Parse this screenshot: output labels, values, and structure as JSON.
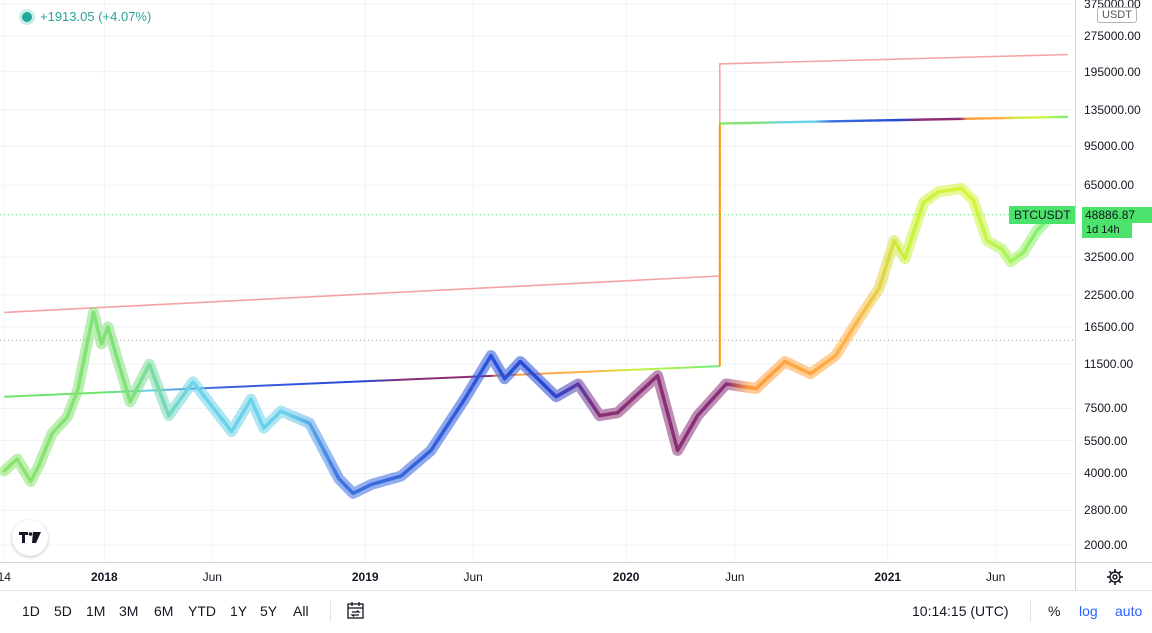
{
  "header": {
    "change_text": "+1913.05 (+4.07%)"
  },
  "price_axis": {
    "currency": "USDT",
    "symbol": "BTCUSDT",
    "last_price": "48886.87",
    "countdown": "1d 14h"
  },
  "toolbar": {
    "ranges": [
      "1D",
      "5D",
      "1M",
      "3M",
      "6M",
      "YTD",
      "1Y",
      "5Y",
      "All"
    ],
    "time": "10:14:15 (UTC)",
    "percent_label": "%",
    "log_label": "log",
    "auto_label": "auto"
  },
  "icons": {
    "logo": "tradingview-logo",
    "compare": "compare-calendar-icon",
    "settings": "gear-icon"
  },
  "colors": {
    "accent": "#2962ff",
    "positive": "#26a69a",
    "last_price_bg": "#4be36b",
    "resistance_line": "#f5a3a3",
    "top_projection": "#ff9800"
  },
  "chart_data": {
    "type": "line",
    "scale": "log",
    "ylim": [
      1800,
      375000
    ],
    "y_ticks": [
      "375000.00",
      "275000.00",
      "195000.00",
      "135000.00",
      "95000.00",
      "65000.00",
      "32500.00",
      "22500.00",
      "16500.00",
      "11500.00",
      "7500.00",
      "5500.00",
      "4000.00",
      "2800.00",
      "2000.00"
    ],
    "xlim": [
      "2017-08-08",
      "2021-09-20"
    ],
    "x_ticks": [
      {
        "label": "14",
        "date": "2017-08-14"
      },
      {
        "label": "2018",
        "date": "2018-01-01"
      },
      {
        "label": "Jun",
        "date": "2018-06-01"
      },
      {
        "label": "2019",
        "date": "2019-01-01"
      },
      {
        "label": "Jun",
        "date": "2019-06-01"
      },
      {
        "label": "2020",
        "date": "2020-01-01"
      },
      {
        "label": "Jun",
        "date": "2020-06-01"
      },
      {
        "label": "2021",
        "date": "2021-01-01"
      },
      {
        "label": "Jun",
        "date": "2021-06-01"
      }
    ],
    "last_price": 48886.87,
    "horizontal_dotted_level": 14500,
    "series": [
      {
        "name": "BTCUSDT",
        "points": [
          [
            "2017-08-14",
            4100
          ],
          [
            "2017-09-01",
            4600
          ],
          [
            "2017-09-20",
            3700
          ],
          [
            "2017-10-01",
            4300
          ],
          [
            "2017-10-20",
            5900
          ],
          [
            "2017-11-10",
            6900
          ],
          [
            "2017-11-25",
            9000
          ],
          [
            "2017-12-17",
            19000
          ],
          [
            "2017-12-28",
            14000
          ],
          [
            "2018-01-06",
            16500
          ],
          [
            "2018-02-06",
            8000
          ],
          [
            "2018-03-05",
            11500
          ],
          [
            "2018-04-01",
            7000
          ],
          [
            "2018-05-05",
            9700
          ],
          [
            "2018-06-28",
            6000
          ],
          [
            "2018-07-25",
            8200
          ],
          [
            "2018-08-12",
            6200
          ],
          [
            "2018-09-05",
            7300
          ],
          [
            "2018-10-15",
            6500
          ],
          [
            "2018-11-25",
            3800
          ],
          [
            "2018-12-15",
            3300
          ],
          [
            "2019-01-10",
            3600
          ],
          [
            "2019-02-20",
            3900
          ],
          [
            "2019-04-03",
            5000
          ],
          [
            "2019-05-20",
            8200
          ],
          [
            "2019-06-26",
            12500
          ],
          [
            "2019-07-15",
            10000
          ],
          [
            "2019-08-06",
            11800
          ],
          [
            "2019-09-25",
            8400
          ],
          [
            "2019-10-26",
            9500
          ],
          [
            "2019-11-25",
            7000
          ],
          [
            "2019-12-20",
            7200
          ],
          [
            "2020-02-14",
            10300
          ],
          [
            "2020-03-13",
            5000
          ],
          [
            "2020-04-10",
            7000
          ],
          [
            "2020-05-20",
            9500
          ],
          [
            "2020-07-01",
            9100
          ],
          [
            "2020-08-10",
            11800
          ],
          [
            "2020-09-15",
            10500
          ],
          [
            "2020-10-20",
            12500
          ],
          [
            "2020-11-25",
            18500
          ],
          [
            "2020-12-20",
            24000
          ],
          [
            "2021-01-10",
            38000
          ],
          [
            "2021-01-25",
            32000
          ],
          [
            "2021-02-20",
            55000
          ],
          [
            "2021-03-13",
            61000
          ],
          [
            "2021-04-14",
            63000
          ],
          [
            "2021-05-01",
            56000
          ],
          [
            "2021-05-20",
            38000
          ],
          [
            "2021-06-10",
            35000
          ],
          [
            "2021-06-22",
            31000
          ],
          [
            "2021-07-10",
            34000
          ],
          [
            "2021-07-29",
            42000
          ],
          [
            "2021-08-20",
            48886.87
          ]
        ]
      },
      {
        "name": "",
        "points": [
          [
            "2017-08-14",
            19000
          ],
          [
            "2020-05-11",
            27000
          ],
          [
            "2020-05-11",
            210000
          ],
          [
            "2021-09-10",
            230000
          ]
        ]
      },
      {
        "name": "",
        "points": [
          [
            "2017-08-14",
            8400
          ],
          [
            "2020-05-11",
            11300
          ],
          [
            "2020-05-11",
            118000
          ],
          [
            "2021-09-10",
            126000
          ]
        ]
      }
    ]
  }
}
